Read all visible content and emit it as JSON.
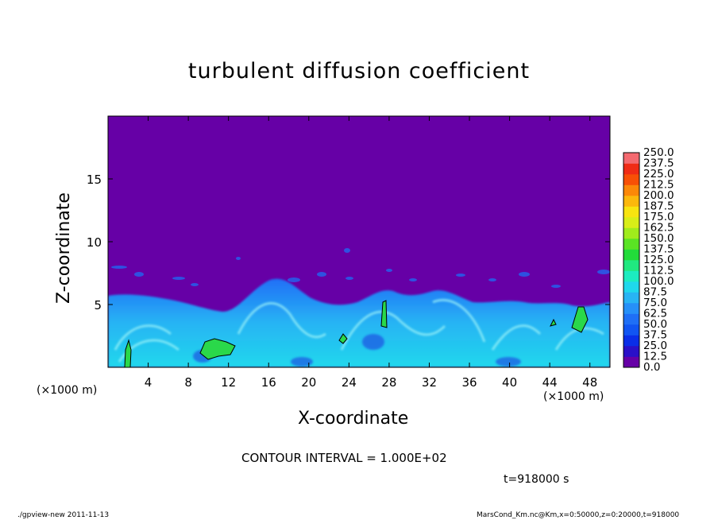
{
  "chart_data": {
    "type": "heatmap",
    "title": "turbulent diffusion coefficient",
    "xlabel": "X-coordinate",
    "ylabel": "Z-coordinate",
    "x_unit": "(×1000 m)",
    "x_unit_right": "(×1000 m)",
    "xlim": [
      0,
      50
    ],
    "ylim": [
      0,
      20
    ],
    "x_ticks": [
      "4",
      "8",
      "12",
      "16",
      "20",
      "24",
      "28",
      "32",
      "36",
      "40",
      "44",
      "48"
    ],
    "x_tick_values": [
      4,
      8,
      12,
      16,
      20,
      24,
      28,
      32,
      36,
      40,
      44,
      48
    ],
    "y_ticks": [
      "5",
      "10",
      "15"
    ],
    "y_tick_values": [
      5,
      10,
      15
    ],
    "colorbar": {
      "levels": [
        "0.0",
        "12.5",
        "25.0",
        "37.5",
        "50.0",
        "62.5",
        "75.0",
        "87.5",
        "100.0",
        "112.5",
        "125.0",
        "137.5",
        "150.0",
        "162.5",
        "175.0",
        "187.5",
        "200.0",
        "212.5",
        "225.0",
        "237.5",
        "250.0"
      ],
      "colors": [
        "#6600a6",
        "#2a10c8",
        "#0a2ee8",
        "#1155f2",
        "#1f6ff6",
        "#2690f8",
        "#28b4f4",
        "#1fd8ec",
        "#1cecc0",
        "#20e880",
        "#22dc3a",
        "#5ae424",
        "#a0ec1c",
        "#d8ee18",
        "#f8e410",
        "#fcb80c",
        "#fc8808",
        "#f85006",
        "#f02c16",
        "#f46a70"
      ]
    },
    "field": {
      "background_value": 0,
      "background_color": "#6600a6",
      "turbulent_layer_top_approx": 5,
      "high_value_regions": [
        {
          "x": 2,
          "z": 1.2,
          "level": "100.0"
        },
        {
          "x": 10,
          "z": 1.5,
          "level": "100.0"
        },
        {
          "x": 27,
          "z": 4.5,
          "level": "100.0"
        },
        {
          "x": 47,
          "z": 4.2,
          "level": "100.0"
        }
      ]
    },
    "contour_interval": "CONTOUR INTERVAL = 1.000E+02",
    "time_label": "t=918000 s"
  },
  "footer": {
    "left": "./gpview-new  2011-11-13",
    "right": "MarsCond_Km.nc@Km,x=0:50000,z=0:20000,t=918000"
  }
}
